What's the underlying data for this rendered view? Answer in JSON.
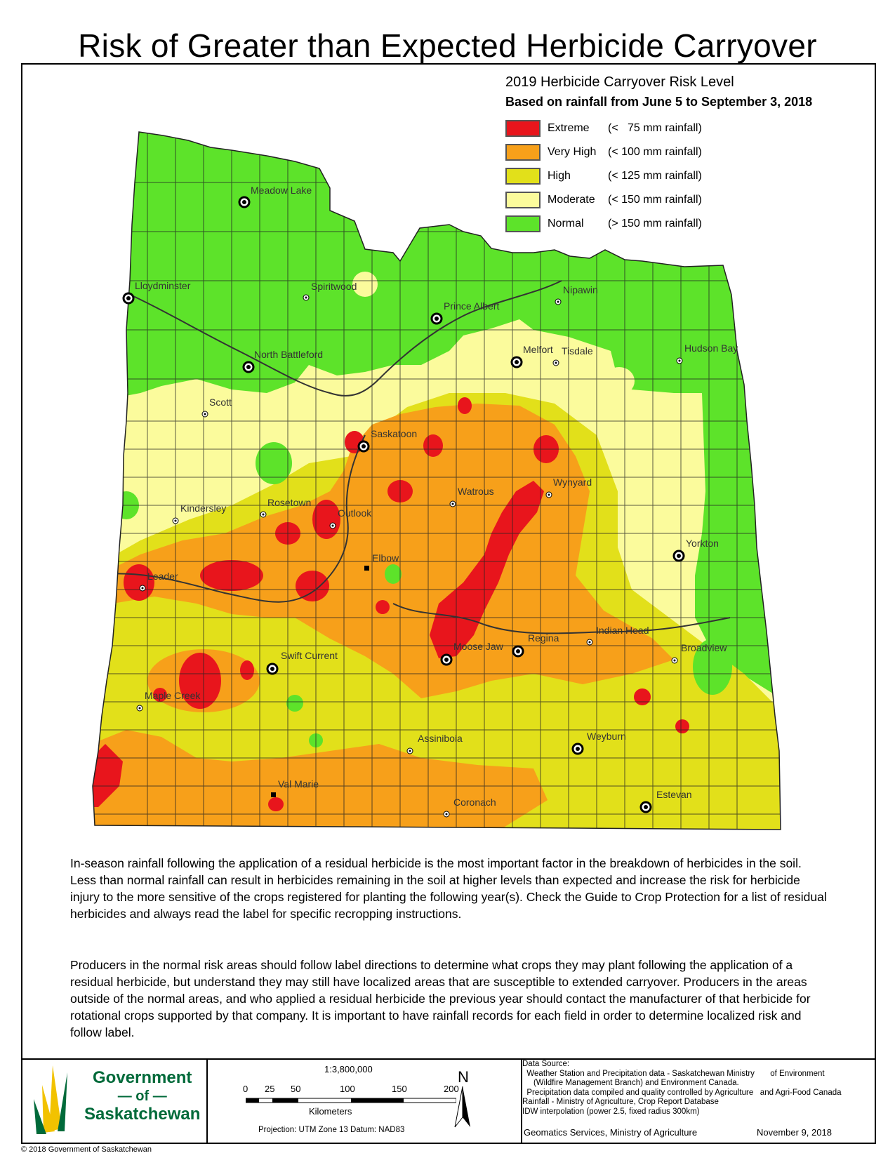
{
  "title": "Risk of Greater than Expected Herbicide Carryover",
  "legend": {
    "title": "2019 Herbicide Carryover Risk Level",
    "subtitle": "Based on rainfall from June 5 to September 3, 2018",
    "items": [
      {
        "level": "Extreme",
        "range": "(<   75 mm rainfall)",
        "color": "#e8151c"
      },
      {
        "level": "Very High",
        "range": "(< 100 mm rainfall)",
        "color": "#f7a01a"
      },
      {
        "level": "High",
        "range": "(< 125 mm rainfall)",
        "color": "#e2e01a"
      },
      {
        "level": "Moderate",
        "range": "(< 150 mm rainfall)",
        "color": "#fbfb9c"
      },
      {
        "level": "Normal",
        "range": "(> 150 mm rainfall)",
        "color": "#5de32a"
      }
    ]
  },
  "places": {
    "meadow_lake": "Meadow Lake",
    "lloydminster": "Lloydminster",
    "spiritwood": "Spiritwood",
    "prince_albert": "Prince Albert",
    "nipawin": "Nipawin",
    "melfort": "Melfort",
    "tisdale": "Tisdale",
    "hudson_bay": "Hudson Bay",
    "north_battleford": "North Battleford",
    "scott": "Scott",
    "saskatoon": "Saskatoon",
    "wynyard": "Wynyard",
    "watrous": "Watrous",
    "rosetown": "Rosetown",
    "kindersley": "Kindersley",
    "outlook": "Outlook",
    "yorkton": "Yorkton",
    "elbow": "Elbow",
    "leader": "Leader",
    "indian_head": "Indian Head",
    "regina": "Regina",
    "moose_jaw": "Moose Jaw",
    "broadview": "Broadview",
    "swift_current": "Swift Current",
    "maple_creek": "Maple Creek",
    "weyburn": "Weyburn",
    "assiniboia": "Assiniboia",
    "val_marie": "Val Marie",
    "estevan": "Estevan",
    "coronach": "Coronach"
  },
  "paragraphs": [
    "In-season rainfall following the application of a residual herbicide is the most important factor in the breakdown of herbicides in the soil. Less than normal rainfall can result in herbicides remaining in the soil at higher levels than expected and increase the risk for herbicide injury to the more sensitive of the crops registered for planting the following year(s). Check the Guide to Crop Protection for a list of residual herbicides and always read the label for specific recropping instructions.",
    "Producers in the normal risk areas should follow label directions to determine what crops they may plant following the application of a residual herbicide, but understand they may still have localized areas that are susceptible to extended carryover. Producers in the areas outside of the normal areas, and who applied a residual herbicide the previous year should contact the manufacturer of that herbicide for rotational crops supported by that company. It is important to have rainfall records for each field in order to determine localized risk and follow label."
  ],
  "government": {
    "line1": "Government",
    "line2": "of",
    "line3": "Saskatchewan"
  },
  "scale": {
    "ratio": "1:3,800,000",
    "ticks": [
      "0",
      "25",
      "50",
      "100",
      "150",
      "200"
    ],
    "unit": "Kilometers",
    "projection": "Projection: UTM Zone 13   Datum: NAD83"
  },
  "north_arrow": "N",
  "source": {
    "lines": [
      "Data Source:",
      "  Weather Station and Precipitation data - Saskatchewan Ministry       of Environment",
      "     (Wildfire Management Branch) and Environment Canada.",
      "  Precipitation data compiled and quality controlled by Agriculture   and Agri-Food Canada",
      "Rainfall - Ministry of Agriculture, Crop Report Database",
      "IDW interpolation (power 2.5, fixed radius 300km)"
    ],
    "credit": "Geomatics Services, Ministry of Agriculture",
    "date": "November 9, 2018"
  },
  "copyright": "© 2018 Government of Saskatchewan"
}
